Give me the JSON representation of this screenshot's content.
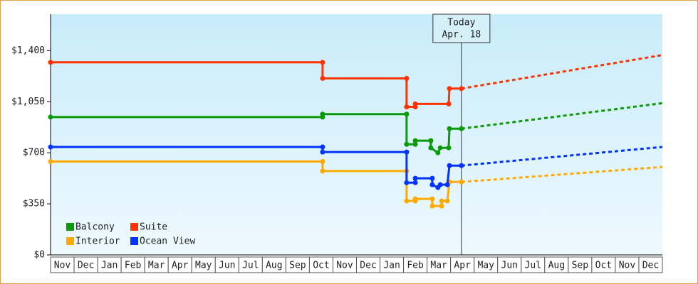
{
  "chart_data": {
    "type": "line",
    "categories": [
      "Nov",
      "Dec",
      "Jan",
      "Feb",
      "Mar",
      "Apr",
      "May",
      "Jun",
      "Jul",
      "Aug",
      "Sep",
      "Oct",
      "Nov",
      "Dec",
      "Jan",
      "Feb",
      "Mar",
      "Apr",
      "May",
      "Jun",
      "Jul",
      "Aug",
      "Sep",
      "Oct",
      "Nov",
      "Dec"
    ],
    "xlim": [
      0,
      26
    ],
    "ylim": [
      0,
      1650
    ],
    "yticks": [
      {
        "value": 0,
        "label": "$0"
      },
      {
        "value": 350,
        "label": "$350"
      },
      {
        "value": 700,
        "label": "$700"
      },
      {
        "value": 1050,
        "label": "$1,050"
      },
      {
        "value": 1400,
        "label": "$1,400"
      }
    ],
    "annotation": {
      "x": 17.46,
      "lines": [
        "Today",
        "Apr. 18"
      ]
    },
    "series": [
      {
        "name": "Balcony",
        "color": "#0a9a0a",
        "x": [
          0,
          11.56,
          11.56,
          15.13,
          15.13,
          15.5,
          15.5,
          16.16,
          16.16,
          16.46,
          16.56,
          16.92,
          16.95,
          17.46
        ],
        "values": [
          945,
          945,
          965,
          965,
          758,
          758,
          783,
          783,
          734,
          700,
          734,
          734,
          865,
          865
        ],
        "forecast": {
          "x": [
            17.46,
            26
          ],
          "values": [
            865,
            1040
          ]
        }
      },
      {
        "name": "Suite",
        "color": "#ff3300",
        "x": [
          0,
          11.56,
          11.56,
          15.13,
          15.13,
          15.5,
          15.5,
          16.92,
          16.95,
          17.46
        ],
        "values": [
          1320,
          1320,
          1210,
          1210,
          1015,
          1015,
          1035,
          1035,
          1140,
          1140
        ],
        "forecast": {
          "x": [
            17.46,
            26
          ],
          "values": [
            1140,
            1370
          ]
        }
      },
      {
        "name": "Interior",
        "color": "#ffaa00",
        "x": [
          0,
          11.56,
          11.56,
          15.13,
          15.13,
          15.5,
          15.5,
          16.22,
          16.22,
          16.62,
          16.62,
          16.86,
          16.95,
          17.46
        ],
        "values": [
          640,
          640,
          575,
          575,
          370,
          370,
          384,
          384,
          335,
          335,
          370,
          370,
          500,
          500
        ],
        "forecast": {
          "x": [
            17.46,
            26
          ],
          "values": [
            500,
            603
          ]
        }
      },
      {
        "name": "Ocean View",
        "color": "#0033ff",
        "x": [
          0,
          11.56,
          11.56,
          15.13,
          15.13,
          15.5,
          15.5,
          16.22,
          16.22,
          16.46,
          16.56,
          16.86,
          16.95,
          17.46
        ],
        "values": [
          740,
          740,
          705,
          705,
          495,
          495,
          525,
          525,
          481,
          462,
          481,
          481,
          612,
          612
        ],
        "forecast": {
          "x": [
            17.46,
            26
          ],
          "values": [
            612,
            740
          ]
        }
      }
    ]
  }
}
